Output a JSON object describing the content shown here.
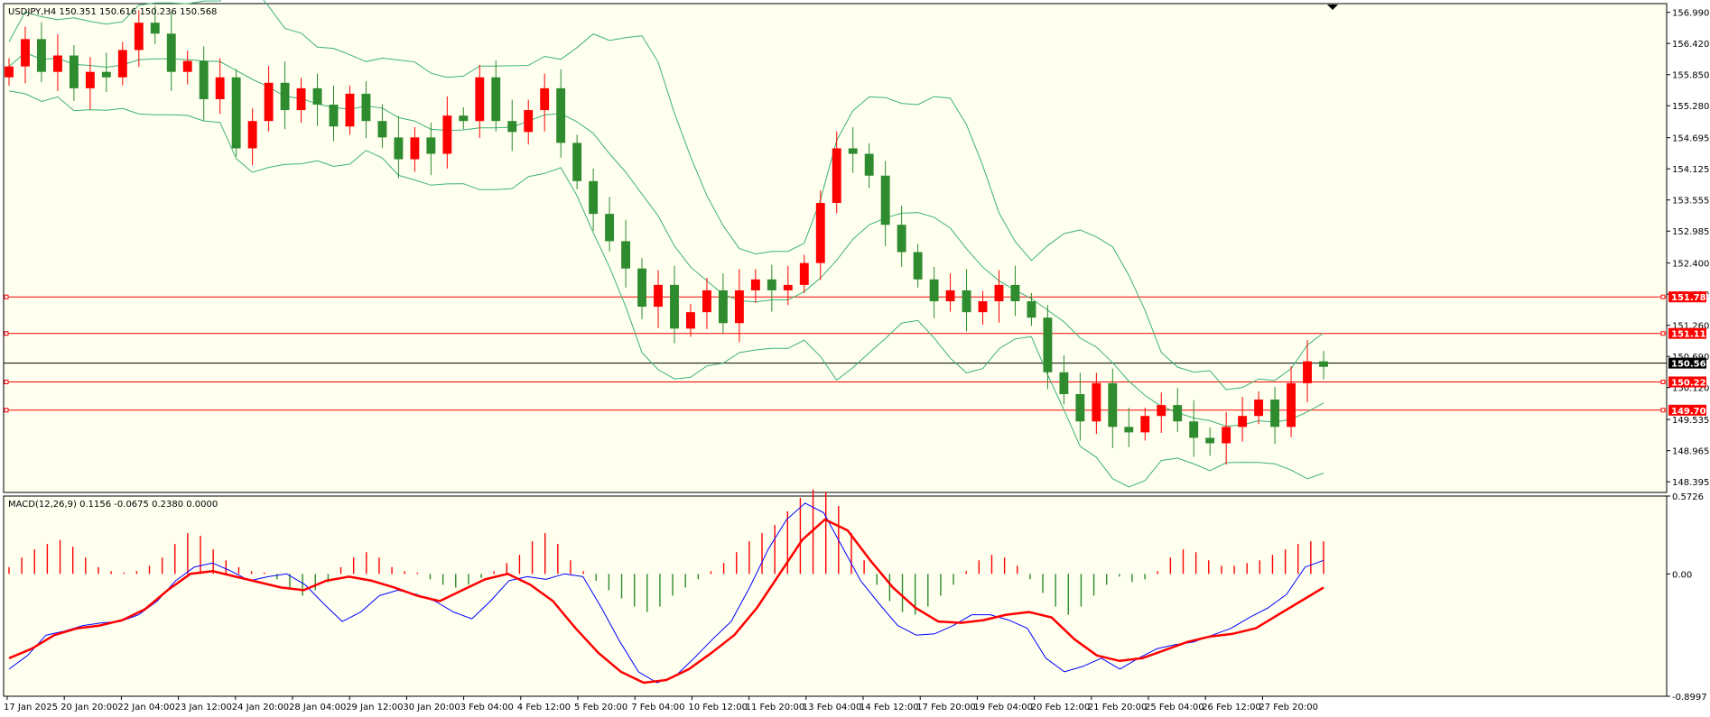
{
  "header": {
    "symbol_line": "USDJPY,H4  150.351 150.616 150.236 150.568",
    "macd_line": "MACD(12,26,9) 0.1156 -0.0675 0.2380 0.0000"
  },
  "colors": {
    "background": "#fffff0",
    "bull": "#ff0000",
    "bear": "#2e8b2e",
    "band": "#3cb371",
    "hline": "#ff0000",
    "current": "#000000",
    "macd_line": "#0000ff",
    "signal_line": "#ff0000"
  },
  "chart_data": {
    "type": "candlestick",
    "symbol": "USDJPY",
    "timeframe": "H4",
    "price_axis": {
      "range": [
        148.2,
        157.15
      ],
      "ticks": [
        "156.990",
        "156.420",
        "155.850",
        "155.280",
        "154.695",
        "154.125",
        "153.555",
        "152.985",
        "152.400",
        "151.830",
        "151.260",
        "150.690",
        "150.120",
        "149.535",
        "148.965",
        "148.395"
      ]
    },
    "time_labels": [
      "17 Jan 2025",
      "20 Jan 20:00",
      "22 Jan 04:00",
      "23 Jan 12:00",
      "24 Jan 20:00",
      "28 Jan 04:00",
      "29 Jan 12:00",
      "30 Jan 20:00",
      "3 Feb 04:00",
      "4 Feb 12:00",
      "5 Feb 20:00",
      "7 Feb 04:00",
      "10 Feb 12:00",
      "11 Feb 20:00",
      "13 Feb 04:00",
      "14 Feb 12:00",
      "17 Feb 20:00",
      "19 Feb 04:00",
      "20 Feb 12:00",
      "21 Feb 20:00",
      "25 Feb 04:00",
      "26 Feb 12:00",
      "27 Feb 20:00"
    ],
    "horizontal_levels": [
      {
        "value": 151.78,
        "label": "151.780"
      },
      {
        "value": 151.111,
        "label": "151.111"
      },
      {
        "value": 150.223,
        "label": "150.223"
      },
      {
        "value": 149.706,
        "label": "149.706"
      }
    ],
    "current_price": {
      "value": 150.568,
      "label": "150.568"
    },
    "close_path": [
      156.0,
      156.5,
      155.9,
      156.2,
      155.6,
      155.9,
      155.8,
      156.3,
      156.8,
      156.6,
      155.9,
      156.1,
      155.4,
      155.8,
      154.5,
      155.0,
      155.7,
      155.2,
      155.6,
      155.3,
      154.9,
      155.5,
      155.0,
      154.7,
      154.3,
      154.7,
      154.4,
      155.1,
      155.0,
      155.8,
      155.0,
      154.8,
      155.2,
      155.6,
      154.6,
      153.9,
      153.3,
      152.8,
      152.3,
      151.6,
      152.0,
      151.2,
      151.5,
      151.9,
      151.3,
      151.9,
      152.1,
      151.9,
      152.0,
      152.4,
      153.5,
      154.5,
      154.4,
      154.0,
      153.1,
      152.6,
      152.1,
      151.7,
      151.9,
      151.5,
      151.7,
      152.0,
      151.7,
      151.4,
      150.4,
      150.0,
      149.5,
      150.2,
      149.4,
      149.3,
      149.6,
      149.8,
      149.5,
      149.2,
      149.1,
      149.4,
      149.6,
      149.9,
      149.4,
      150.2,
      150.6,
      150.5
    ],
    "macd_axis": {
      "range": [
        -0.8997,
        0.5726
      ],
      "ticks": [
        "0.5726",
        "0.00",
        "-0.8997"
      ]
    },
    "macd_histogram": [
      0.05,
      0.12,
      0.18,
      0.22,
      0.25,
      0.2,
      0.12,
      0.05,
      0.02,
      0.01,
      0.02,
      0.06,
      0.12,
      0.22,
      0.3,
      0.28,
      0.18,
      0.1,
      0.05,
      0.02,
      0.01,
      -0.04,
      -0.1,
      -0.16,
      -0.12,
      -0.06,
      0.05,
      0.12,
      0.16,
      0.12,
      0.05,
      0.02,
      0.01,
      -0.04,
      -0.08,
      -0.1,
      -0.08,
      -0.03,
      0.02,
      0.08,
      0.14,
      0.24,
      0.3,
      0.22,
      0.1,
      0.02,
      -0.05,
      -0.12,
      -0.18,
      -0.24,
      -0.28,
      -0.24,
      -0.16,
      -0.1,
      -0.04,
      0.02,
      0.08,
      0.16,
      0.24,
      0.3,
      0.36,
      0.46,
      0.56,
      0.62,
      0.6,
      0.5,
      0.3,
      0.1,
      -0.08,
      -0.2,
      -0.28,
      -0.3,
      -0.24,
      -0.16,
      -0.08,
      0.02,
      0.1,
      0.14,
      0.12,
      0.06,
      -0.04,
      -0.14,
      -0.24,
      -0.3,
      -0.24,
      -0.16,
      -0.08,
      -0.02,
      -0.06,
      -0.04,
      0.02,
      0.12,
      0.18,
      0.16,
      0.1,
      0.06,
      0.06,
      0.08,
      0.1,
      0.14,
      0.18,
      0.22,
      0.24,
      0.24
    ],
    "macd_line": [
      -0.7,
      -0.6,
      -0.45,
      -0.42,
      -0.38,
      -0.36,
      -0.35,
      -0.3,
      -0.2,
      -0.05,
      0.05,
      0.08,
      0.02,
      -0.05,
      -0.02,
      0.0,
      -0.08,
      -0.22,
      -0.35,
      -0.28,
      -0.16,
      -0.12,
      -0.15,
      -0.2,
      -0.28,
      -0.33,
      -0.2,
      -0.05,
      -0.02,
      -0.04,
      0.0,
      -0.02,
      -0.25,
      -0.5,
      -0.72,
      -0.8,
      -0.75,
      -0.62,
      -0.48,
      -0.35,
      -0.1,
      0.18,
      0.4,
      0.52,
      0.45,
      0.2,
      -0.05,
      -0.22,
      -0.38,
      -0.45,
      -0.44,
      -0.38,
      -0.3,
      -0.3,
      -0.34,
      -0.4,
      -0.62,
      -0.72,
      -0.68,
      -0.62,
      -0.7,
      -0.62,
      -0.55,
      -0.52,
      -0.5,
      -0.45,
      -0.4,
      -0.32,
      -0.25,
      -0.15,
      0.05,
      0.1
    ],
    "signal_line": [
      -0.62,
      -0.55,
      -0.45,
      -0.4,
      -0.38,
      -0.34,
      -0.26,
      -0.12,
      0.0,
      0.02,
      -0.02,
      -0.06,
      -0.1,
      -0.12,
      -0.05,
      -0.02,
      -0.05,
      -0.1,
      -0.16,
      -0.2,
      -0.12,
      -0.04,
      0.0,
      -0.08,
      -0.2,
      -0.4,
      -0.58,
      -0.72,
      -0.8,
      -0.78,
      -0.7,
      -0.58,
      -0.45,
      -0.25,
      0.0,
      0.25,
      0.4,
      0.32,
      0.1,
      -0.1,
      -0.25,
      -0.35,
      -0.36,
      -0.34,
      -0.3,
      -0.28,
      -0.32,
      -0.48,
      -0.6,
      -0.64,
      -0.62,
      -0.56,
      -0.5,
      -0.46,
      -0.44,
      -0.4,
      -0.3,
      -0.2,
      -0.1
    ]
  }
}
